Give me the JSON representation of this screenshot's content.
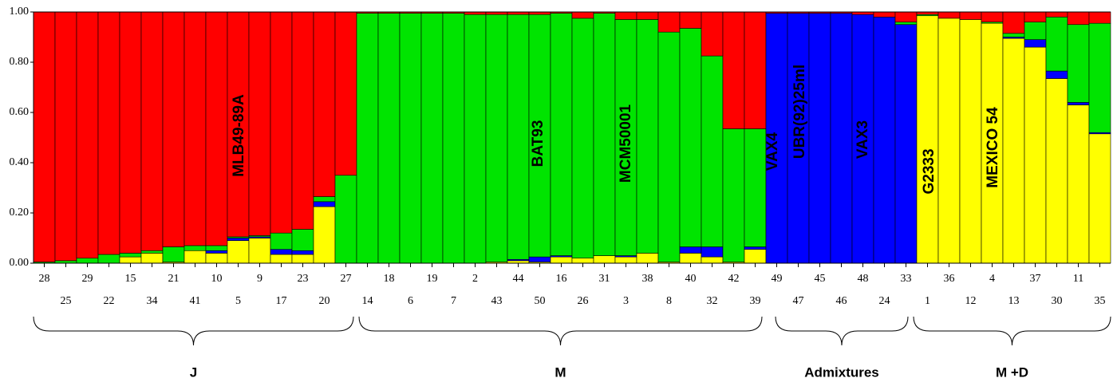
{
  "chart_data": {
    "type": "stacked-bar",
    "categories": [
      "28",
      "25",
      "29",
      "22",
      "15",
      "34",
      "21",
      "41",
      "10",
      "5",
      "9",
      "17",
      "23",
      "20",
      "27",
      "14",
      "18",
      "6",
      "19",
      "7",
      "2",
      "43",
      "44",
      "50",
      "16",
      "26",
      "31",
      "3",
      "38",
      "8",
      "40",
      "32",
      "42",
      "39",
      "49",
      "47",
      "45",
      "46",
      "48",
      "24",
      "33",
      "1",
      "36",
      "12",
      "4",
      "13",
      "37",
      "30",
      "11",
      "35"
    ],
    "series": [
      {
        "color": "#ffff00",
        "values": [
          0,
          0,
          0,
          0,
          0.025,
          0.04,
          0.005,
          0.05,
          0.04,
          0.09,
          0.1,
          0.035,
          0.035,
          0.225,
          0,
          0,
          0,
          0,
          0,
          0,
          0,
          0.005,
          0.01,
          0.005,
          0.025,
          0.02,
          0.03,
          0.025,
          0.04,
          0.005,
          0.04,
          0.025,
          0.005,
          0.055,
          0,
          0,
          0,
          0,
          0,
          0,
          0,
          0.985,
          0.975,
          0.97,
          0.955,
          0.895,
          0.86,
          0.735,
          0.63,
          0.515
        ]
      },
      {
        "color": "#0000ff",
        "values": [
          0,
          0,
          0,
          0,
          0,
          0,
          0,
          0,
          0.01,
          0.01,
          0.005,
          0.02,
          0.015,
          0.02,
          0,
          0,
          0,
          0,
          0,
          0,
          0,
          0,
          0.005,
          0.02,
          0.005,
          0,
          0,
          0.005,
          0,
          0,
          0.025,
          0.04,
          0,
          0.01,
          0.995,
          0.995,
          0.995,
          0.995,
          0.99,
          0.98,
          0.95,
          0,
          0,
          0,
          0,
          0.005,
          0.03,
          0.03,
          0.01,
          0.005
        ]
      },
      {
        "color": "#00e400",
        "values": [
          0.005,
          0.01,
          0.02,
          0.035,
          0.015,
          0.01,
          0.06,
          0.02,
          0.02,
          0.005,
          0.005,
          0.065,
          0.085,
          0.02,
          0.35,
          0.995,
          0.995,
          0.995,
          0.995,
          0.995,
          0.99,
          0.985,
          0.975,
          0.965,
          0.965,
          0.955,
          0.965,
          0.94,
          0.93,
          0.915,
          0.87,
          0.76,
          0.53,
          0.47,
          0,
          0,
          0,
          0,
          0,
          0,
          0.01,
          0.005,
          0,
          0,
          0.005,
          0.015,
          0.07,
          0.215,
          0.31,
          0.435
        ]
      },
      {
        "color": "#ff0000",
        "values": [
          0.995,
          0.99,
          0.98,
          0.965,
          0.96,
          0.95,
          0.935,
          0.93,
          0.93,
          0.895,
          0.89,
          0.88,
          0.865,
          0.735,
          0.65,
          0.005,
          0.005,
          0.005,
          0.005,
          0.005,
          0.01,
          0.01,
          0.01,
          0.01,
          0.005,
          0.025,
          0.005,
          0.03,
          0.03,
          0.08,
          0.065,
          0.175,
          0.465,
          0.465,
          0.005,
          0.005,
          0.005,
          0.005,
          0.01,
          0.02,
          0.04,
          0.01,
          0.025,
          0.03,
          0.04,
          0.085,
          0.04,
          0.02,
          0.05,
          0.045
        ]
      }
    ],
    "ylim": [
      0,
      1
    ],
    "yticks": [
      {
        "value": 0,
        "label": "0.00"
      },
      {
        "value": 0.2,
        "label": "0.20"
      },
      {
        "value": 0.4,
        "label": "0.40"
      },
      {
        "value": 0.6,
        "label": "0.60"
      },
      {
        "value": 0.8,
        "label": "0.80"
      },
      {
        "value": 1,
        "label": "1.00"
      }
    ],
    "grid": false,
    "annotations": [
      "MLB49-89A",
      "BAT93",
      "MCM50001",
      "VAX4",
      "UBR(92)25ml",
      "VAX3",
      "G2333",
      "MEXICO 54"
    ],
    "groups": [
      "J",
      "M",
      "Admixtures",
      "M +D"
    ]
  }
}
